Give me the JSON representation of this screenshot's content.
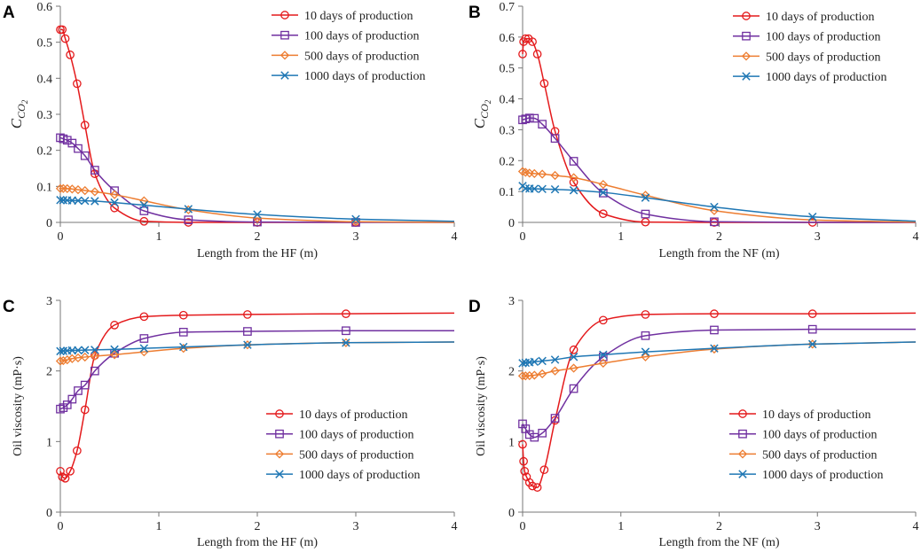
{
  "figure": {
    "title": ""
  },
  "chart_data": [
    {
      "panel": "A",
      "type": "line",
      "title": "",
      "xlabel": "Length from the HF (m)",
      "ylabel_main": "C",
      "ylabel_sub": "CO2",
      "xlim": [
        0,
        4
      ],
      "ylim": [
        0,
        0.6
      ],
      "xticks": [
        0,
        1,
        2,
        3,
        4
      ],
      "yticks": [
        0,
        0.1,
        0.2,
        0.3,
        0.4,
        0.5,
        0.6
      ],
      "legend_position": "top-right",
      "series": [
        {
          "name": "10 days of production",
          "color": "#e41a1c",
          "marker": "circle",
          "x": [
            0,
            0.02,
            0.05,
            0.1,
            0.17,
            0.25,
            0.35,
            0.55,
            0.85,
            1.3,
            2.0,
            3.0
          ],
          "y": [
            0.535,
            0.535,
            0.51,
            0.465,
            0.385,
            0.27,
            0.135,
            0.04,
            0.003,
            0,
            0,
            0
          ],
          "marker_x": [
            0,
            0.02,
            0.05,
            0.1,
            0.17,
            0.25,
            0.35,
            0.55,
            0.85,
            1.3,
            2.0,
            3.0
          ]
        },
        {
          "name": "100 days of production",
          "color": "#7030a0",
          "marker": "square",
          "x": [
            0,
            0.03,
            0.07,
            0.12,
            0.18,
            0.25,
            0.35,
            0.55,
            0.85,
            1.3,
            2.0,
            3.0,
            4.0
          ],
          "y": [
            0.235,
            0.232,
            0.228,
            0.22,
            0.205,
            0.185,
            0.145,
            0.088,
            0.032,
            0.007,
            0.001,
            0,
            0
          ],
          "marker_x": [
            0,
            0.03,
            0.07,
            0.12,
            0.18,
            0.25,
            0.35,
            0.55,
            0.85,
            1.3,
            2.0,
            3.0
          ]
        },
        {
          "name": "500 days of production",
          "color": "#ed7d31",
          "marker": "diamond",
          "x": [
            0,
            0.05,
            0.1,
            0.2,
            0.35,
            0.55,
            0.85,
            1.3,
            2.0,
            3.0,
            4.0
          ],
          "y": [
            0.094,
            0.094,
            0.093,
            0.09,
            0.085,
            0.077,
            0.06,
            0.035,
            0.012,
            0.002,
            0
          ],
          "marker_x": [
            0,
            0.03,
            0.07,
            0.12,
            0.18,
            0.25,
            0.35,
            0.55,
            0.85,
            1.3,
            2.0,
            3.0
          ]
        },
        {
          "name": "1000 days of production",
          "color": "#1f77b4",
          "marker": "x",
          "x": [
            0,
            0.1,
            0.35,
            0.55,
            0.85,
            1.3,
            2.0,
            3.0,
            4.0
          ],
          "y": [
            0.062,
            0.061,
            0.059,
            0.055,
            0.048,
            0.037,
            0.022,
            0.009,
            0.003
          ],
          "marker_x": [
            0,
            0.03,
            0.07,
            0.12,
            0.18,
            0.25,
            0.35,
            0.55,
            0.85,
            1.3,
            2.0,
            3.0
          ]
        }
      ]
    },
    {
      "panel": "B",
      "type": "line",
      "title": "",
      "xlabel": "Length from the NF (m)",
      "ylabel_main": "C",
      "ylabel_sub": "CO2",
      "xlim": [
        0,
        4
      ],
      "ylim": [
        0,
        0.7
      ],
      "xticks": [
        0,
        1,
        2,
        3,
        4
      ],
      "yticks": [
        0,
        0.1,
        0.2,
        0.3,
        0.4,
        0.5,
        0.6,
        0.7
      ],
      "legend_position": "top-right",
      "series": [
        {
          "name": "10 days of production",
          "color": "#e41a1c",
          "marker": "circle",
          "x": [
            0,
            0.01,
            0.03,
            0.06,
            0.1,
            0.15,
            0.22,
            0.33,
            0.52,
            0.82,
            1.25,
            1.95,
            2.95,
            4.0
          ],
          "y": [
            0.545,
            0.585,
            0.595,
            0.595,
            0.585,
            0.545,
            0.45,
            0.295,
            0.13,
            0.028,
            0.001,
            0,
            0,
            0
          ],
          "marker_x": [
            0,
            0.01,
            0.03,
            0.06,
            0.1,
            0.15,
            0.22,
            0.33,
            0.52,
            0.82,
            1.25,
            1.95,
            2.95
          ]
        },
        {
          "name": "100 days of production",
          "color": "#7030a0",
          "marker": "square",
          "x": [
            0,
            0.03,
            0.07,
            0.12,
            0.2,
            0.33,
            0.52,
            0.82,
            1.25,
            1.95,
            2.95,
            4.0
          ],
          "y": [
            0.332,
            0.335,
            0.338,
            0.337,
            0.318,
            0.272,
            0.198,
            0.095,
            0.027,
            0.002,
            0,
            0
          ],
          "marker_x": [
            0,
            0.03,
            0.07,
            0.12,
            0.2,
            0.33,
            0.52,
            0.82,
            1.25,
            1.95
          ]
        },
        {
          "name": "500 days of production",
          "color": "#ed7d31",
          "marker": "diamond",
          "x": [
            0,
            0.05,
            0.12,
            0.22,
            0.33,
            0.52,
            0.82,
            1.25,
            1.95,
            2.95,
            4.0
          ],
          "y": [
            0.165,
            0.16,
            0.158,
            0.156,
            0.152,
            0.145,
            0.123,
            0.088,
            0.038,
            0.008,
            0.001
          ],
          "marker_x": [
            0,
            0.03,
            0.07,
            0.12,
            0.2,
            0.33,
            0.52,
            0.82,
            1.25,
            1.95
          ]
        },
        {
          "name": "1000 days of production",
          "color": "#1f77b4",
          "marker": "x",
          "x": [
            0,
            0.03,
            0.1,
            0.33,
            0.52,
            0.82,
            1.25,
            1.95,
            2.95,
            4.0
          ],
          "y": [
            0.118,
            0.11,
            0.109,
            0.107,
            0.104,
            0.097,
            0.08,
            0.05,
            0.018,
            0.004
          ],
          "marker_x": [
            0,
            0.03,
            0.07,
            0.12,
            0.2,
            0.33,
            0.52,
            0.82,
            1.25,
            1.95,
            2.95
          ]
        }
      ]
    },
    {
      "panel": "C",
      "type": "line",
      "title": "",
      "xlabel": "Length from the HF (m)",
      "ylabel": "Oil viscosity (mP·s)",
      "xlim": [
        0,
        4
      ],
      "ylim": [
        0,
        3
      ],
      "xticks": [
        0,
        1,
        2,
        3,
        4
      ],
      "yticks": [
        0,
        1,
        2,
        3
      ],
      "legend_position": "bottom-right",
      "series": [
        {
          "name": "10 days of production",
          "color": "#e41a1c",
          "marker": "circle",
          "x": [
            0,
            0.02,
            0.05,
            0.1,
            0.17,
            0.25,
            0.35,
            0.55,
            0.85,
            1.25,
            1.9,
            2.9,
            4.0
          ],
          "y": [
            0.58,
            0.5,
            0.48,
            0.58,
            0.87,
            1.45,
            2.22,
            2.65,
            2.77,
            2.79,
            2.8,
            2.81,
            2.82
          ],
          "marker_x": [
            0,
            0.02,
            0.05,
            0.1,
            0.17,
            0.25,
            0.35,
            0.55,
            0.85,
            1.25,
            1.9,
            2.9
          ]
        },
        {
          "name": "100 days of production",
          "color": "#7030a0",
          "marker": "square",
          "x": [
            0,
            0.03,
            0.07,
            0.12,
            0.18,
            0.25,
            0.35,
            0.55,
            0.85,
            1.25,
            1.9,
            2.9,
            4.0
          ],
          "y": [
            1.46,
            1.48,
            1.52,
            1.6,
            1.72,
            1.8,
            2.0,
            2.25,
            2.46,
            2.55,
            2.56,
            2.57,
            2.57
          ],
          "marker_x": [
            0,
            0.03,
            0.07,
            0.12,
            0.18,
            0.25,
            0.35,
            0.55,
            0.85,
            1.25,
            1.9,
            2.9
          ]
        },
        {
          "name": "500 days of production",
          "color": "#ed7d31",
          "marker": "diamond",
          "x": [
            0,
            0.05,
            0.1,
            0.2,
            0.35,
            0.55,
            0.85,
            1.25,
            1.9,
            2.9,
            4.0
          ],
          "y": [
            2.14,
            2.15,
            2.17,
            2.19,
            2.21,
            2.23,
            2.27,
            2.32,
            2.37,
            2.4,
            2.41
          ],
          "marker_x": [
            0,
            0.03,
            0.07,
            0.12,
            0.18,
            0.25,
            0.35,
            0.55,
            0.85,
            1.25,
            1.9,
            2.9
          ]
        },
        {
          "name": "1000 days of production",
          "color": "#1f77b4",
          "marker": "x",
          "x": [
            0,
            0.1,
            0.25,
            0.55,
            0.85,
            1.25,
            1.9,
            2.9,
            4.0
          ],
          "y": [
            2.28,
            2.29,
            2.295,
            2.305,
            2.32,
            2.34,
            2.37,
            2.4,
            2.41
          ],
          "marker_x": [
            0,
            0.03,
            0.07,
            0.12,
            0.18,
            0.25,
            0.35,
            0.55,
            0.85,
            1.25,
            1.9,
            2.9
          ]
        }
      ]
    },
    {
      "panel": "D",
      "type": "line",
      "title": "",
      "xlabel": "Length from the NF (m)",
      "ylabel": "Oil viscosity (mP·s)",
      "xlim": [
        0,
        4
      ],
      "ylim": [
        0,
        3
      ],
      "xticks": [
        0,
        1,
        2,
        3,
        4
      ],
      "yticks": [
        0,
        1,
        2,
        3
      ],
      "legend_position": "bottom-right",
      "series": [
        {
          "name": "10 days of production",
          "color": "#e41a1c",
          "marker": "circle",
          "x": [
            0,
            0.01,
            0.02,
            0.04,
            0.07,
            0.1,
            0.15,
            0.22,
            0.33,
            0.52,
            0.82,
            1.25,
            1.95,
            2.95,
            4.0
          ],
          "y": [
            0.96,
            0.72,
            0.58,
            0.5,
            0.42,
            0.37,
            0.35,
            0.6,
            1.3,
            2.3,
            2.72,
            2.8,
            2.81,
            2.81,
            2.82
          ],
          "marker_x": [
            0,
            0.01,
            0.02,
            0.04,
            0.07,
            0.1,
            0.15,
            0.22,
            0.33,
            0.52,
            0.82,
            1.25,
            1.95,
            2.95
          ]
        },
        {
          "name": "100 days of production",
          "color": "#7030a0",
          "marker": "square",
          "x": [
            0,
            0.03,
            0.07,
            0.12,
            0.2,
            0.33,
            0.52,
            0.82,
            1.25,
            1.95,
            2.95,
            4.0
          ],
          "y": [
            1.25,
            1.18,
            1.1,
            1.06,
            1.12,
            1.33,
            1.75,
            2.2,
            2.5,
            2.58,
            2.59,
            2.59
          ],
          "marker_x": [
            0,
            0.03,
            0.07,
            0.12,
            0.2,
            0.33,
            0.52,
            0.82,
            1.25,
            1.95,
            2.95
          ]
        },
        {
          "name": "500 days of production",
          "color": "#ed7d31",
          "marker": "diamond",
          "x": [
            0,
            0.05,
            0.12,
            0.2,
            0.33,
            0.52,
            0.82,
            1.25,
            1.95,
            2.95,
            4.0
          ],
          "y": [
            1.93,
            1.93,
            1.94,
            1.96,
            2.0,
            2.04,
            2.11,
            2.2,
            2.31,
            2.38,
            2.41
          ],
          "marker_x": [
            0,
            0.03,
            0.07,
            0.12,
            0.2,
            0.33,
            0.52,
            0.82,
            1.25,
            1.95,
            2.95
          ]
        },
        {
          "name": "1000 days of production",
          "color": "#1f77b4",
          "marker": "x",
          "x": [
            0,
            0.05,
            0.12,
            0.33,
            0.52,
            0.82,
            1.25,
            1.95,
            2.95,
            4.0
          ],
          "y": [
            2.11,
            2.12,
            2.13,
            2.16,
            2.2,
            2.23,
            2.27,
            2.32,
            2.38,
            2.41
          ],
          "marker_x": [
            0,
            0.03,
            0.07,
            0.12,
            0.2,
            0.33,
            0.52,
            0.82,
            1.25,
            1.95,
            2.95
          ]
        }
      ]
    }
  ]
}
